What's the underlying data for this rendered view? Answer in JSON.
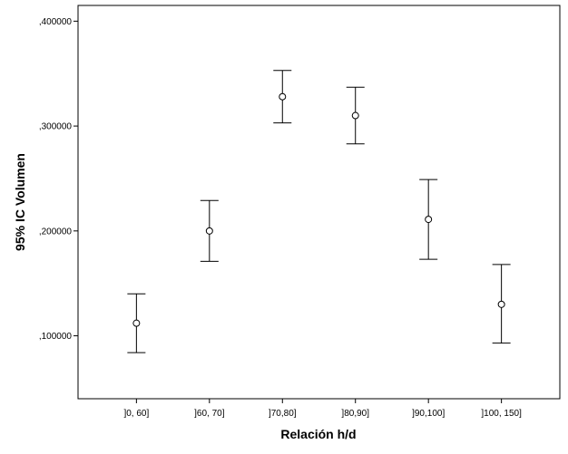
{
  "chart_data": {
    "type": "errorbar",
    "title": "",
    "xlabel": "Relación h/d",
    "ylabel": "95% IC Volumen",
    "categories": [
      "]0, 60]",
      "]60, 70]",
      "]70,80]",
      "]80,90]",
      "]90,100]",
      "]100, 150]"
    ],
    "series": [
      {
        "means": [
          0.112,
          0.2,
          0.328,
          0.31,
          0.211,
          0.13
        ],
        "lower": [
          0.084,
          0.171,
          0.303,
          0.283,
          0.173,
          0.093
        ],
        "upper": [
          0.14,
          0.229,
          0.353,
          0.337,
          0.249,
          0.168
        ]
      }
    ],
    "ylim": [
      0.04,
      0.415
    ],
    "yticks": [
      0.1,
      0.2,
      0.3,
      0.4
    ],
    "ytick_labels": [
      ",100000",
      ",200000",
      ",300000",
      ",400000"
    ],
    "grid": false,
    "legend": "none",
    "colors": {
      "line": "#000000",
      "background": "#ffffff"
    }
  }
}
